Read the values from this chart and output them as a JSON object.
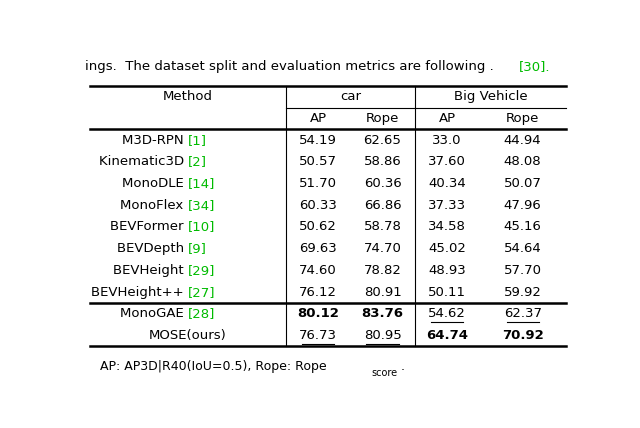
{
  "rows": [
    {
      "method": "M3D-RPN",
      "ref": "1",
      "car_ap": "54.19",
      "car_rope": "62.65",
      "bv_ap": "33.0",
      "bv_rope": "44.94",
      "bold": [],
      "underline": []
    },
    {
      "method": "Kinematic3D",
      "ref": "2",
      "car_ap": "50.57",
      "car_rope": "58.86",
      "bv_ap": "37.60",
      "bv_rope": "48.08",
      "bold": [],
      "underline": []
    },
    {
      "method": "MonoDLE",
      "ref": "14",
      "car_ap": "51.70",
      "car_rope": "60.36",
      "bv_ap": "40.34",
      "bv_rope": "50.07",
      "bold": [],
      "underline": []
    },
    {
      "method": "MonoFlex",
      "ref": "34",
      "car_ap": "60.33",
      "car_rope": "66.86",
      "bv_ap": "37.33",
      "bv_rope": "47.96",
      "bold": [],
      "underline": []
    },
    {
      "method": "BEVFormer",
      "ref": "10",
      "car_ap": "50.62",
      "car_rope": "58.78",
      "bv_ap": "34.58",
      "bv_rope": "45.16",
      "bold": [],
      "underline": []
    },
    {
      "method": "BEVDepth",
      "ref": "9",
      "car_ap": "69.63",
      "car_rope": "74.70",
      "bv_ap": "45.02",
      "bv_rope": "54.64",
      "bold": [],
      "underline": []
    },
    {
      "method": "BEVHeight",
      "ref": "29",
      "car_ap": "74.60",
      "car_rope": "78.82",
      "bv_ap": "48.93",
      "bv_rope": "57.70",
      "bold": [],
      "underline": []
    },
    {
      "method": "BEVHeight++",
      "ref": "27",
      "car_ap": "76.12",
      "car_rope": "80.91",
      "bv_ap": "50.11",
      "bv_rope": "59.92",
      "bold": [],
      "underline": []
    },
    {
      "method": "MonoGAE",
      "ref": "28",
      "car_ap": "80.12",
      "car_rope": "83.76",
      "bv_ap": "54.62",
      "bv_rope": "62.37",
      "bold": [
        "car_ap",
        "car_rope"
      ],
      "underline": [
        "bv_ap",
        "bv_rope"
      ]
    },
    {
      "method": "MOSE(ours)",
      "ref": "",
      "car_ap": "76.73",
      "car_rope": "80.95",
      "bv_ap": "64.74",
      "bv_rope": "70.92",
      "bold": [
        "bv_ap",
        "bv_rope"
      ],
      "underline": [
        "car_ap",
        "car_rope"
      ]
    }
  ],
  "ref_color": "#00bb00",
  "text_color": "#000000",
  "bg_color": "#ffffff",
  "font_size": 9.5,
  "footnote": "AP: AP3D|R40(IoU=0.5), Rope: Rope",
  "footnote_sub": "score",
  "footnote_end": ".",
  "top_text": "ings.  The dataset split and evaluation metrics are following [30].",
  "top_ref_color": "#00bb00"
}
